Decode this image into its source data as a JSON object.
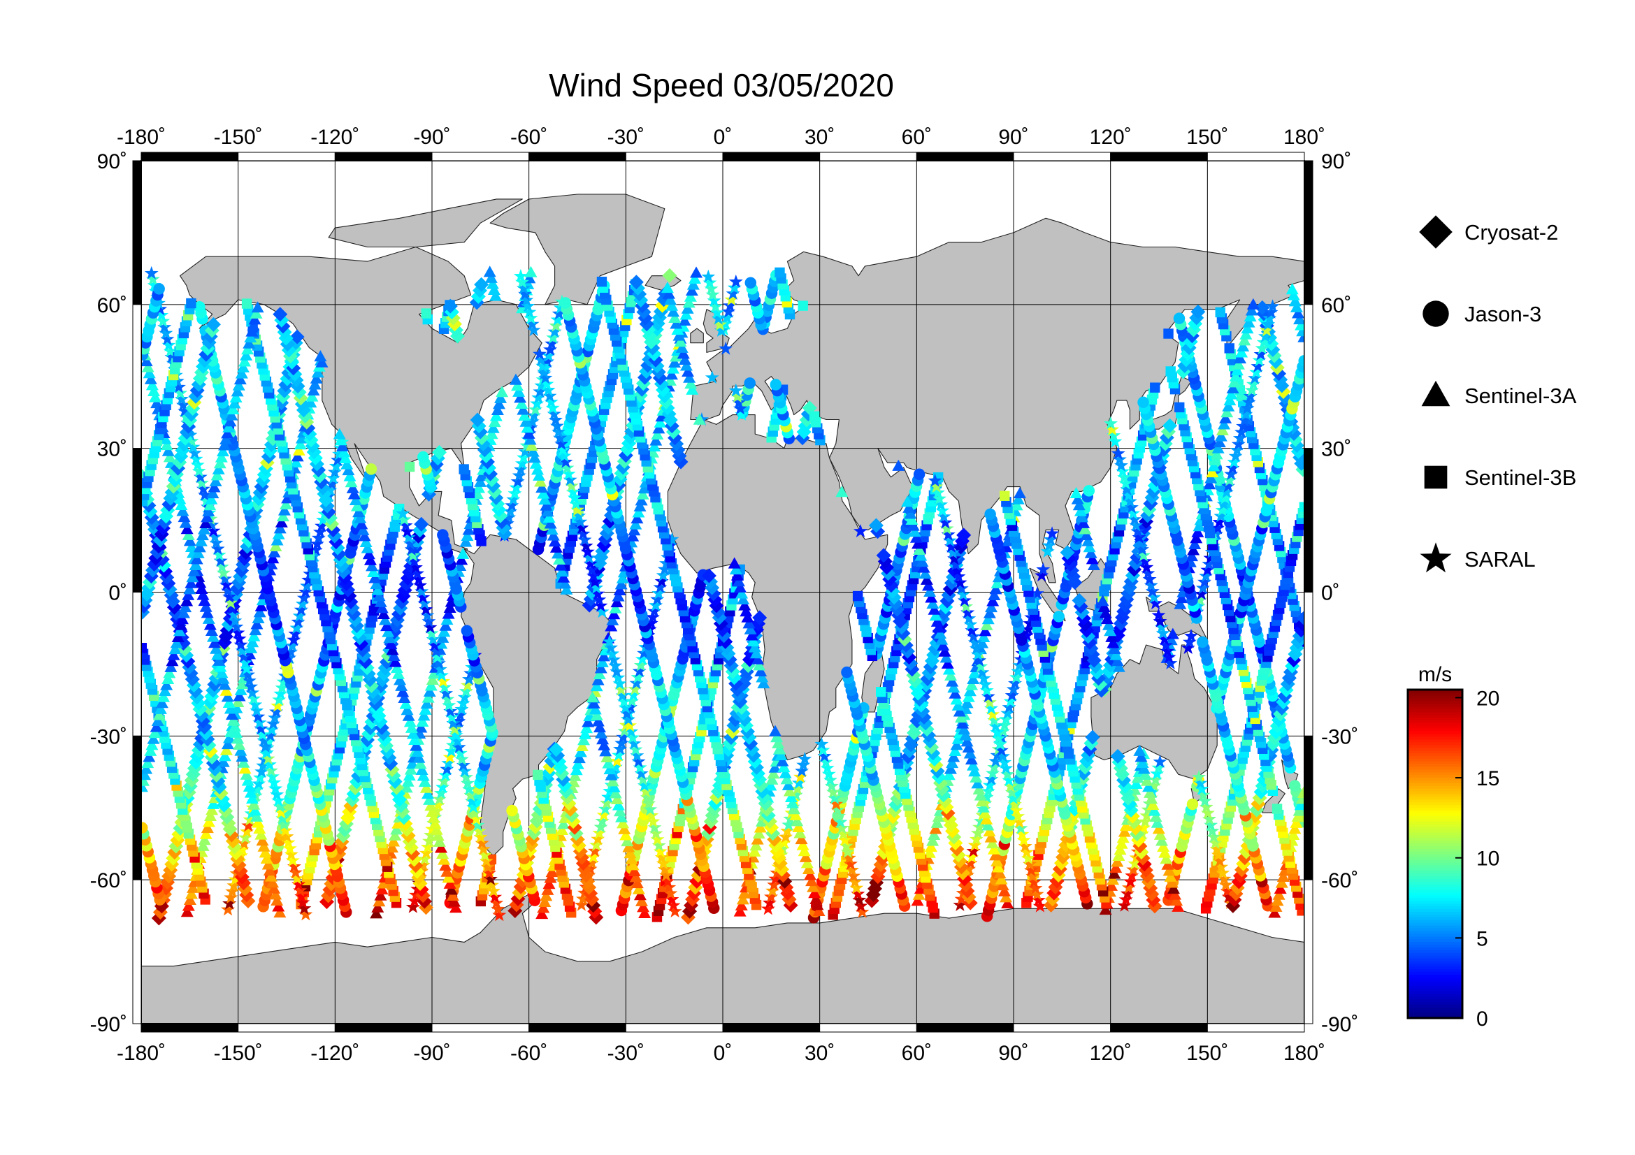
{
  "title": "Wind Speed 03/05/2020",
  "chart_data": {
    "type": "scatter",
    "title": "Wind Speed 03/05/2020",
    "x_range": [
      -180,
      180
    ],
    "y_range": [
      -90,
      90
    ],
    "x_ticks": [
      "-180˚",
      "-150˚",
      "-120˚",
      "-90˚",
      "-60˚",
      "-30˚",
      "0˚",
      "30˚",
      "60˚",
      "90˚",
      "120˚",
      "150˚",
      "180˚"
    ],
    "x_tick_values": [
      -180,
      -150,
      -120,
      -90,
      -60,
      -30,
      0,
      30,
      60,
      90,
      120,
      150,
      180
    ],
    "y_ticks": [
      "90˚",
      "60˚",
      "30˚",
      "0˚",
      "-30˚",
      "-60˚",
      "-90˚"
    ],
    "y_tick_values": [
      90,
      60,
      30,
      0,
      -30,
      -60,
      -90
    ],
    "grid": true,
    "legend_position": "right",
    "series": [
      {
        "name": "Cryosat-2",
        "symbol": "diamond-icon"
      },
      {
        "name": "Jason-3",
        "symbol": "circle-icon"
      },
      {
        "name": "Sentinel-3A",
        "symbol": "triangle-icon"
      },
      {
        "name": "Sentinel-3B",
        "symbol": "square-icon"
      },
      {
        "name": "SARAL",
        "symbol": "star-icon"
      }
    ],
    "colorbar": {
      "unit": "m/s",
      "range": [
        0,
        20.5
      ],
      "ticks": [
        "0",
        "5",
        "10",
        "15",
        "20"
      ],
      "tick_values": [
        0,
        5,
        10,
        15,
        20
      ],
      "colormap": "jet"
    }
  },
  "colors": {
    "land": "#c0c0c0",
    "ocean": "#ffffff",
    "frame": "#000000"
  }
}
